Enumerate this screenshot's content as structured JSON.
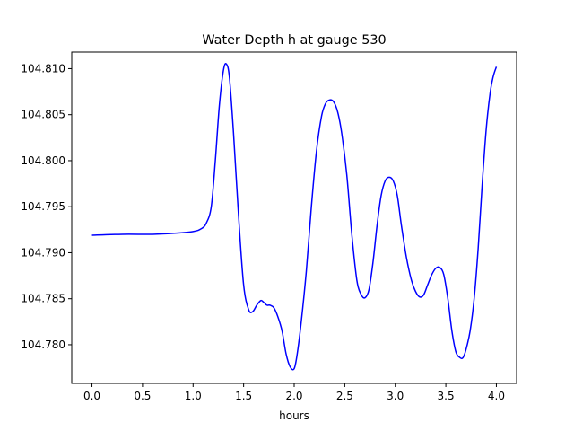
{
  "chart_data": {
    "type": "line",
    "title": "Water Depth h at gauge 530",
    "xlabel": "hours",
    "ylabel": "",
    "xlim": [
      -0.2,
      4.2
    ],
    "ylim": [
      104.7758,
      104.8118
    ],
    "xticks": [
      "0.0",
      "0.5",
      "1.0",
      "1.5",
      "2.0",
      "2.5",
      "3.0",
      "3.5",
      "4.0"
    ],
    "yticks": [
      "104.780",
      "104.785",
      "104.790",
      "104.795",
      "104.800",
      "104.805",
      "104.810"
    ],
    "grid": false,
    "series": [
      {
        "color": "#0000ff",
        "x": [
          0.0,
          0.3,
          0.6,
          0.8,
          1.0,
          1.08,
          1.13,
          1.18,
          1.22,
          1.26,
          1.3,
          1.33,
          1.36,
          1.4,
          1.45,
          1.5,
          1.55,
          1.59,
          1.63,
          1.67,
          1.7,
          1.73,
          1.76,
          1.8,
          1.84,
          1.88,
          1.92,
          1.96,
          2.0,
          2.03,
          2.07,
          2.12,
          2.17,
          2.22,
          2.27,
          2.31,
          2.35,
          2.39,
          2.43,
          2.47,
          2.52,
          2.57,
          2.62,
          2.66,
          2.7,
          2.74,
          2.78,
          2.82,
          2.86,
          2.9,
          2.94,
          2.98,
          3.02,
          3.06,
          3.11,
          3.16,
          3.2,
          3.24,
          3.28,
          3.32,
          3.36,
          3.4,
          3.44,
          3.48,
          3.52,
          3.56,
          3.6,
          3.64,
          3.67,
          3.7,
          3.74,
          3.78,
          3.82,
          3.86,
          3.9,
          3.94,
          3.97,
          4.0
        ],
        "y": [
          104.7919,
          104.792,
          104.792,
          104.7921,
          104.7923,
          104.7926,
          104.7932,
          104.795,
          104.8,
          104.806,
          104.8098,
          104.8105,
          104.809,
          104.803,
          104.794,
          104.7865,
          104.7838,
          104.7836,
          104.7843,
          104.7848,
          104.7846,
          104.7843,
          104.7843,
          104.784,
          104.783,
          104.7815,
          104.779,
          104.7776,
          104.7774,
          104.779,
          104.7825,
          104.788,
          104.795,
          104.801,
          104.8048,
          104.8062,
          104.8066,
          104.8064,
          104.8053,
          104.803,
          104.7985,
          104.792,
          104.787,
          104.7855,
          104.7851,
          104.786,
          104.789,
          104.793,
          104.7962,
          104.7978,
          104.7982,
          104.7978,
          104.7962,
          104.793,
          104.7895,
          104.787,
          104.7858,
          104.7852,
          104.7854,
          104.7865,
          104.7876,
          104.7883,
          104.7884,
          104.7876,
          104.785,
          104.7815,
          104.7792,
          104.7786,
          104.7786,
          104.7795,
          104.7815,
          104.785,
          104.7905,
          104.7975,
          104.8035,
          104.8075,
          104.8092,
          104.8102
        ]
      }
    ]
  }
}
